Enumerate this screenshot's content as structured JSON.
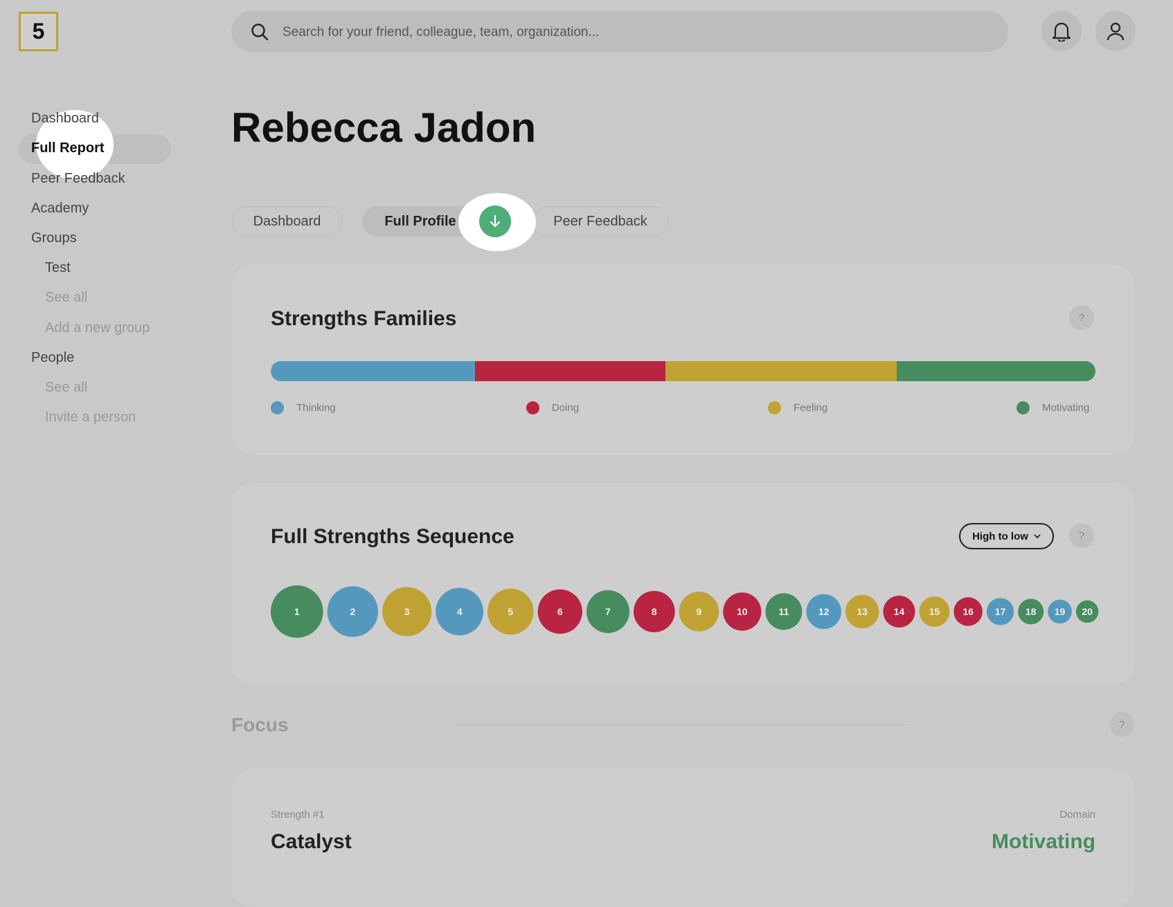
{
  "logo": "5",
  "search": {
    "placeholder": "Search for your friend, colleague, team, organization..."
  },
  "sidebar": {
    "items": [
      "Dashboard",
      "Full Report",
      "Peer Feedback",
      "Academy",
      "Groups",
      "Test",
      "See all",
      "Add a new group",
      "People",
      "See all",
      "Invite a person"
    ]
  },
  "page_title": "Rebecca Jadon",
  "tabs": [
    "Dashboard",
    "Full Profile",
    "Peer Feedback"
  ],
  "strengths_families": {
    "title": "Strengths Families",
    "help": "?",
    "legend": [
      {
        "label": "Thinking",
        "color": "#5499bd"
      },
      {
        "label": "Doing",
        "color": "#b82441"
      },
      {
        "label": "Feeling",
        "color": "#c0a234"
      },
      {
        "label": "Motivating",
        "color": "#468c5e"
      }
    ]
  },
  "sequence": {
    "title": "Full Strengths Sequence",
    "sort": "High to low",
    "help": "?",
    "items": [
      {
        "label": "1",
        "color": "#468c5e"
      },
      {
        "label": "2",
        "color": "#5499bd"
      },
      {
        "label": "3",
        "color": "#c0a234"
      },
      {
        "label": "4",
        "color": "#5499bd"
      },
      {
        "label": "5",
        "color": "#c0a234"
      },
      {
        "label": "6",
        "color": "#b82441"
      },
      {
        "label": "7",
        "color": "#468c5e"
      },
      {
        "label": "8",
        "color": "#b82441"
      },
      {
        "label": "9",
        "color": "#c0a234"
      },
      {
        "label": "10",
        "color": "#b82441"
      },
      {
        "label": "11",
        "color": "#468c5e"
      },
      {
        "label": "12",
        "color": "#5499bd"
      },
      {
        "label": "13",
        "color": "#c0a234"
      },
      {
        "label": "14",
        "color": "#b82441"
      },
      {
        "label": "15",
        "color": "#c0a234"
      },
      {
        "label": "16",
        "color": "#b82441"
      },
      {
        "label": "17",
        "color": "#5499bd"
      },
      {
        "label": "18",
        "color": "#468c5e"
      },
      {
        "label": "19",
        "color": "#5499bd"
      },
      {
        "label": "20",
        "color": "#468c5e"
      }
    ]
  },
  "focus": {
    "title": "Focus",
    "help": "?"
  },
  "strength_card": {
    "rank_label": "Strength #1",
    "name": "Catalyst",
    "domain_label": "Domain",
    "domain": "Motivating",
    "domain_color": "#468c5e"
  }
}
